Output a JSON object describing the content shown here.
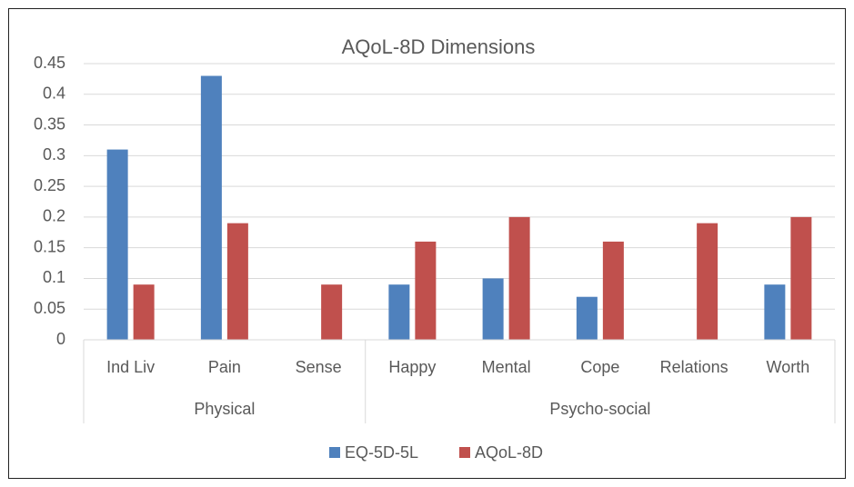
{
  "chart_data": {
    "type": "bar",
    "title": "AQoL-8D Dimensions",
    "categories": [
      "Ind Liv",
      "Pain",
      "Sense",
      "Happy",
      "Mental",
      "Cope",
      "Relations",
      "Worth"
    ],
    "category_groups": [
      "Physical",
      "Physical",
      "Physical",
      "Psycho-social",
      "Psycho-social",
      "Psycho-social",
      "Psycho-social",
      "Psycho-social"
    ],
    "series": [
      {
        "name": "EQ-5D-5L",
        "color": "#4f81bd",
        "values": [
          0.31,
          0.43,
          null,
          0.09,
          0.1,
          0.07,
          null,
          0.09
        ]
      },
      {
        "name": "AQoL-8D",
        "color": "#c0504d",
        "values": [
          0.09,
          0.19,
          0.09,
          0.16,
          0.2,
          0.16,
          0.19,
          0.2
        ]
      }
    ],
    "ylim": [
      0,
      0.45
    ],
    "yticks": [
      0,
      0.05,
      0.1,
      0.15,
      0.2,
      0.25,
      0.3,
      0.35,
      0.4,
      0.45
    ],
    "grid": true,
    "legend": "bottom"
  }
}
